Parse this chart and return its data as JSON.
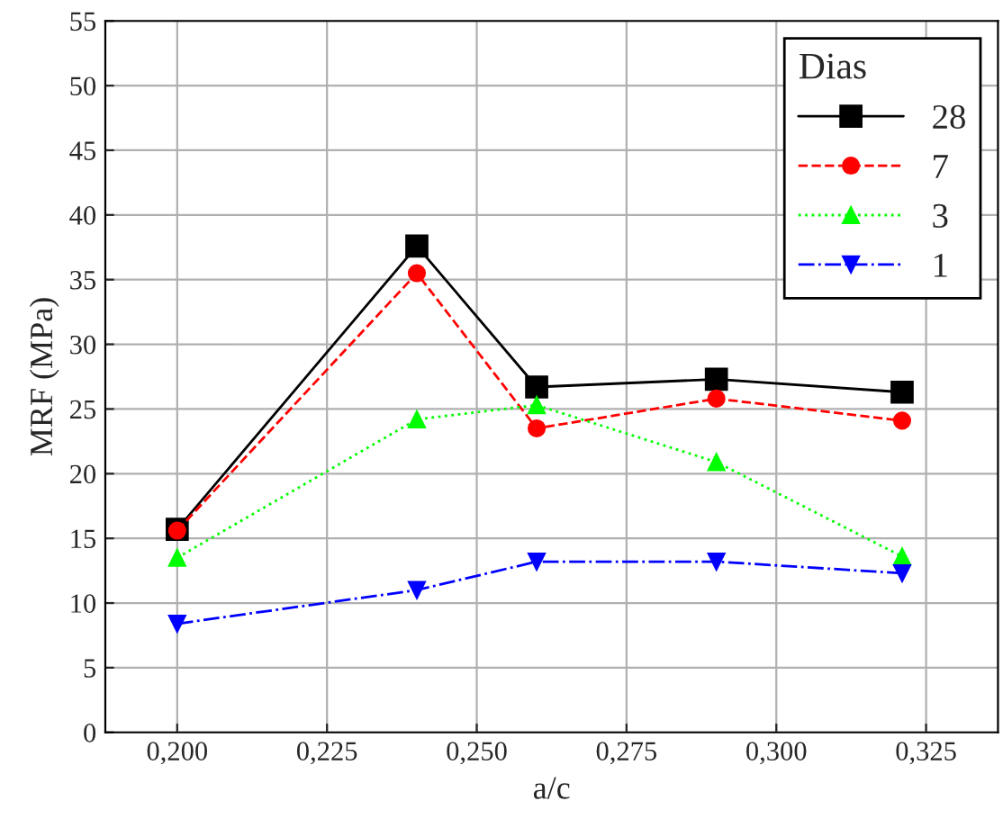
{
  "chart_data": {
    "type": "line",
    "xlabel": "a/c",
    "ylabel": "MRF (MPa)",
    "legend_title": "Dias",
    "legend": "top right",
    "grid": true,
    "x": [
      0.2,
      0.24,
      0.26,
      0.29,
      0.321
    ],
    "xlim": [
      0.188,
      0.337
    ],
    "xticks": [
      {
        "value": 0.2,
        "label": "0,200"
      },
      {
        "value": 0.225,
        "label": "0,225"
      },
      {
        "value": 0.25,
        "label": "0,250"
      },
      {
        "value": 0.275,
        "label": "0,275"
      },
      {
        "value": 0.3,
        "label": "0,300"
      },
      {
        "value": 0.325,
        "label": "0,325"
      }
    ],
    "ylim": [
      0,
      55
    ],
    "yticks": [
      0,
      5,
      10,
      15,
      20,
      25,
      30,
      35,
      40,
      45,
      50,
      55
    ],
    "series": [
      {
        "name": "28",
        "color": "#000000",
        "marker": "square",
        "line_style": "solid",
        "values": [
          15.7,
          37.6,
          26.7,
          27.3,
          26.3
        ]
      },
      {
        "name": "7",
        "color": "#ff0000",
        "marker": "circle",
        "line_style": "dashed",
        "values": [
          15.6,
          35.5,
          23.5,
          25.8,
          24.1
        ]
      },
      {
        "name": "3",
        "color": "#00ff00",
        "marker": "triangle",
        "line_style": "dotted",
        "values": [
          13.5,
          24.2,
          25.3,
          20.9,
          13.6
        ]
      },
      {
        "name": "1",
        "color": "#0000ff",
        "marker": "triangle-down",
        "line_style": "dashdot",
        "values": [
          8.4,
          11.0,
          13.2,
          13.2,
          12.3
        ]
      }
    ]
  }
}
